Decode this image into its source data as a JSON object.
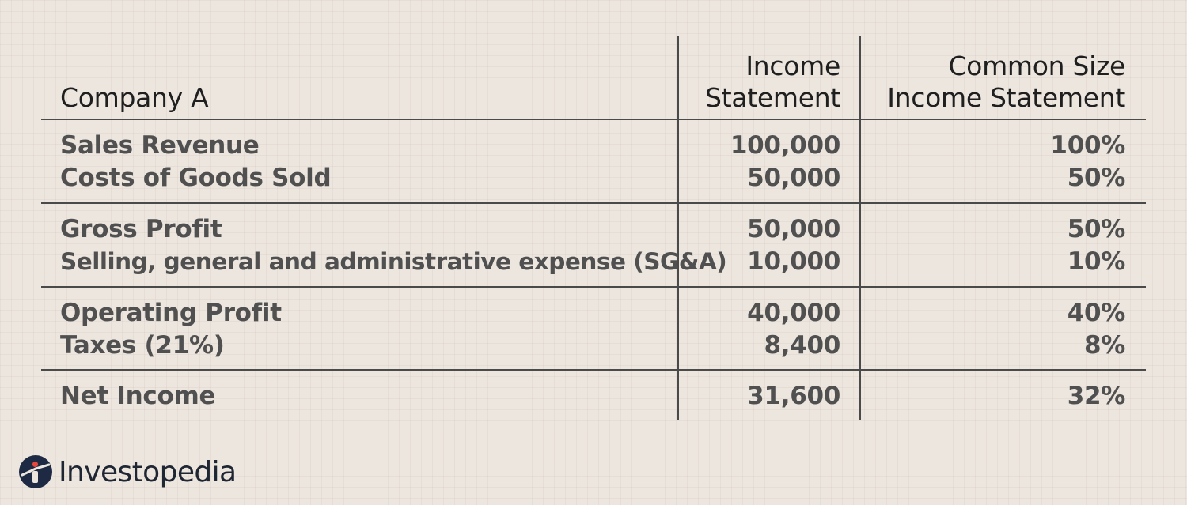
{
  "table": {
    "header": {
      "company": "Company A",
      "income_line1": "Income",
      "income_line2": "Statement",
      "common_line1": "Common Size",
      "common_line2": "Income Statement"
    },
    "rows": [
      {
        "label": "Sales Revenue",
        "income": "100,000",
        "common": "100%"
      },
      {
        "label": "Costs of Goods Sold",
        "income": "50,000",
        "common": "50%"
      },
      {
        "label": "Gross Profit",
        "income": "50,000",
        "common": "50%"
      },
      {
        "label": "Selling, general and administrative expense (SG&A)",
        "income": "10,000",
        "common": "10%"
      },
      {
        "label": "Operating Profit",
        "income": "40,000",
        "common": "40%"
      },
      {
        "label": "Taxes (21%)",
        "income": "8,400",
        "common": "8%"
      },
      {
        "label": "Net Income",
        "income": "31,600",
        "common": "32%"
      }
    ]
  },
  "brand": {
    "name": "Investopedia",
    "icon": "investopedia-logo-icon",
    "colors": {
      "navy": "#1e2a44",
      "red": "#e8453c"
    }
  }
}
